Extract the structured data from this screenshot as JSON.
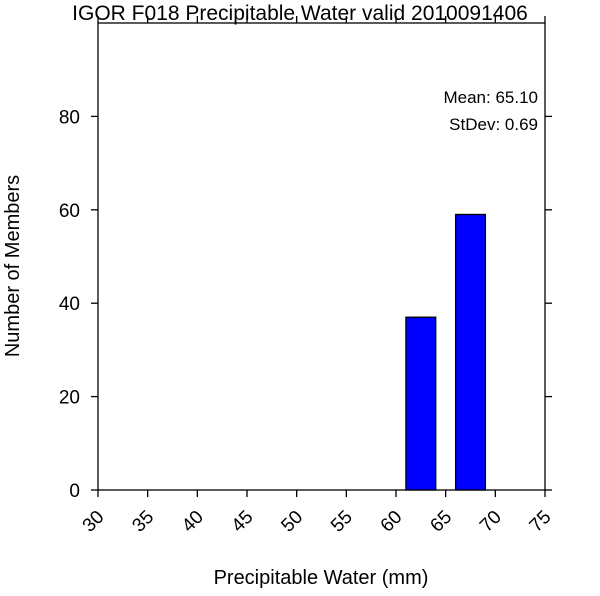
{
  "chart_data": {
    "type": "bar",
    "title": "IGOR F018 Precipitable Water valid 2010091406",
    "xlabel": "Precipitable Water (mm)",
    "ylabel": "Number of Members",
    "xlim": [
      30,
      75
    ],
    "ylim": [
      0,
      100
    ],
    "x_ticks": [
      "30",
      "35",
      "40",
      "45",
      "50",
      "55",
      "60",
      "65",
      "70",
      "75"
    ],
    "y_ticks": [
      "0",
      "20",
      "40",
      "60",
      "80"
    ],
    "bars": [
      {
        "x_start": 61,
        "x_end": 64,
        "value": 37
      },
      {
        "x_start": 66,
        "x_end": 69,
        "value": 59
      }
    ],
    "bar_color": "#0000ff",
    "annotations": {
      "mean": "Mean: 65.10",
      "stdev": "StDev: 0.69"
    },
    "grid": false,
    "legend": "none"
  }
}
